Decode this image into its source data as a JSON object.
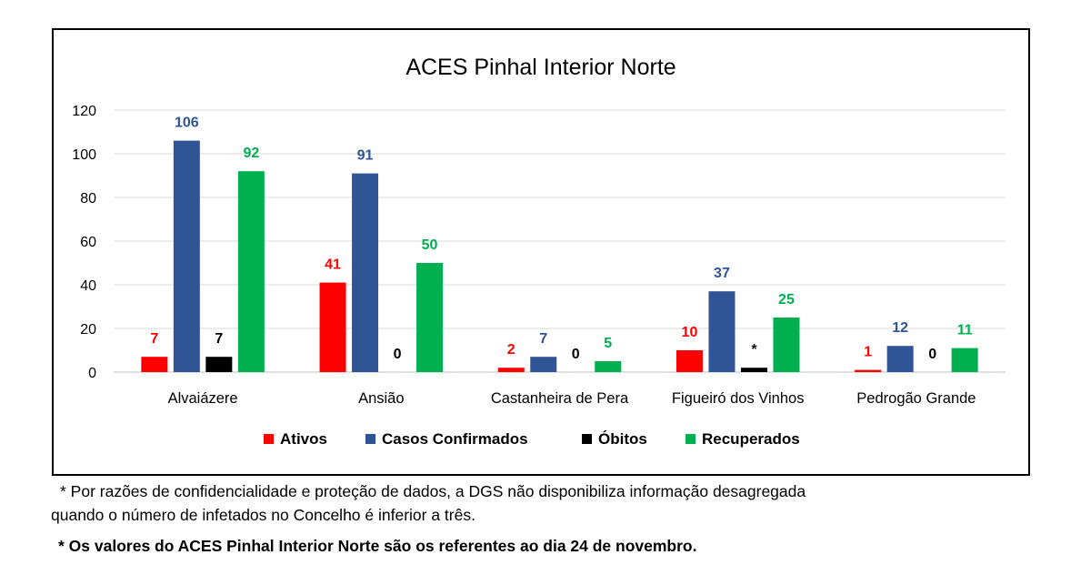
{
  "chart_data": {
    "type": "bar",
    "title": "ACES Pinhal Interior Norte",
    "categories": [
      "Alvaiázere",
      "Ansião",
      "Castanheira de Pera",
      "Figueiró dos Vinhos",
      "Pedrogão Grande"
    ],
    "series": [
      {
        "name": "Ativos",
        "color": "#ff0000",
        "values": [
          7,
          41,
          2,
          10,
          1
        ],
        "labels": [
          "7",
          "41",
          "2",
          "10",
          "1"
        ]
      },
      {
        "name": "Casos Confirmados",
        "color": "#2f5597",
        "values": [
          106,
          91,
          7,
          37,
          12
        ],
        "labels": [
          "106",
          "91",
          "7",
          "37",
          "12"
        ]
      },
      {
        "name": "Óbitos",
        "color": "#000000",
        "values": [
          7,
          0,
          0,
          2,
          0
        ],
        "labels": [
          "7",
          "0",
          "0",
          "*",
          "0"
        ]
      },
      {
        "name": "Recuperados",
        "color": "#00b050",
        "values": [
          92,
          50,
          5,
          25,
          11
        ],
        "labels": [
          "92",
          "50",
          "5",
          "25",
          "11"
        ]
      }
    ],
    "yticks": [
      0,
      20,
      40,
      60,
      80,
      100,
      120
    ],
    "ylim": [
      0,
      120
    ],
    "grid": true,
    "legend_position": "bottom"
  },
  "footnotes": {
    "line1": "* Por razões de confidencialidade e proteção de dados, a DGS não disponibiliza informação desagregada",
    "line2": "quando o número de infetados no Concelho é inferior a três.",
    "line3": "* Os valores do ACES Pinhal Interior Norte são os referentes ao dia 24 de novembro."
  }
}
